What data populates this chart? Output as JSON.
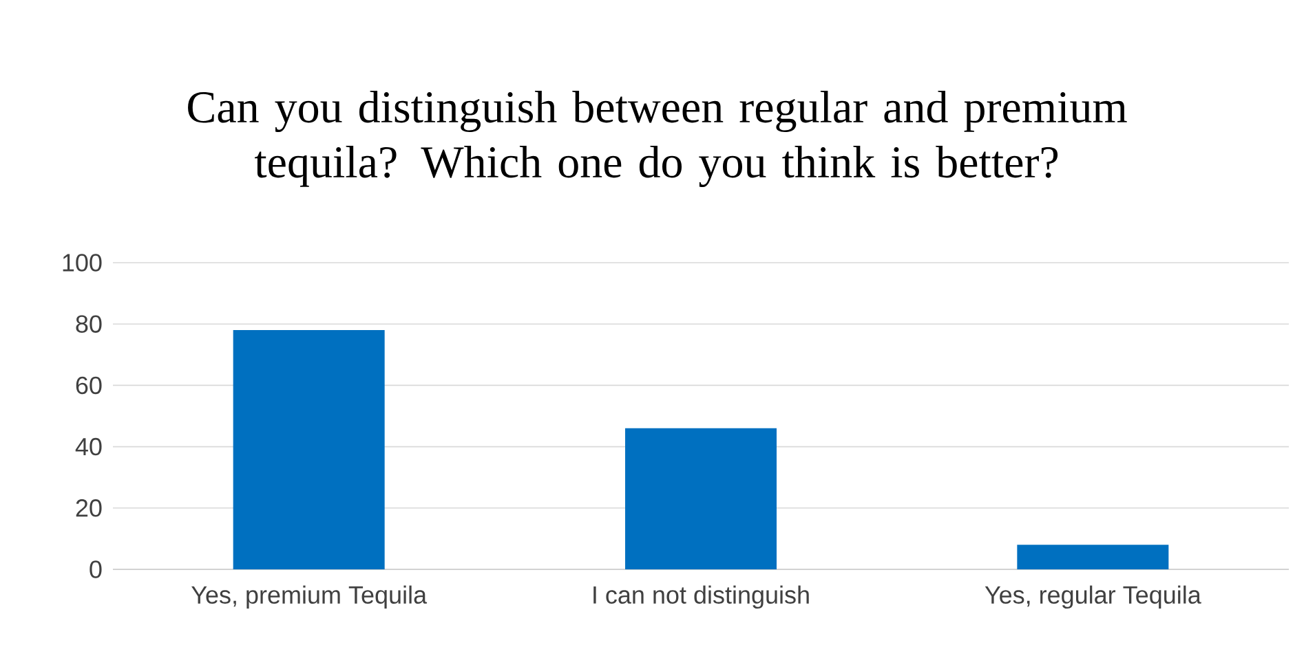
{
  "chart_data": {
    "type": "bar",
    "title": "Can you distinguish between regular and premium tequila? Which one do you think is better?",
    "categories": [
      "Yes, premium Tequila",
      "I can not distinguish",
      "Yes, regular Tequila"
    ],
    "values": [
      78,
      46,
      8
    ],
    "color": "#0070c0",
    "ylim": [
      0,
      100
    ],
    "yticks": [
      0,
      20,
      40,
      60,
      80,
      100
    ],
    "grid": "y"
  }
}
